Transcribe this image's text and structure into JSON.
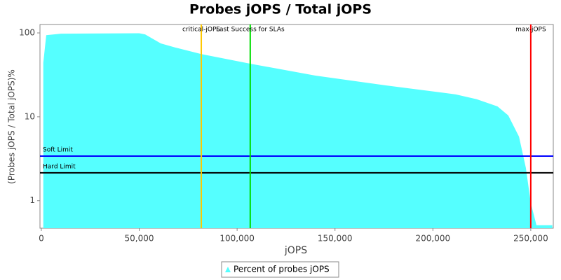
{
  "chart_data": {
    "type": "area",
    "title": "Probes jOPS / Total jOPS",
    "x_label": "jOPS",
    "y_label": "(Probes jOPS / Total jOPS)%",
    "log_y": true,
    "x": [
      1000,
      2500,
      10000,
      50000,
      53000,
      61000,
      68400,
      81700,
      106700,
      140000,
      176000,
      211700,
      222400,
      233000,
      238500,
      244000,
      247500,
      250000,
      252900,
      261000
    ],
    "series": [
      {
        "name": "Percent of probes jOPS",
        "color": "#55ffff",
        "values": [
          44,
          94,
          98,
          99,
          96,
          75,
          67,
          56,
          43,
          31,
          23.7,
          18.5,
          16.2,
          13.3,
          10.4,
          5.8,
          2.46,
          0.94,
          0.51,
          0.51
        ]
      }
    ],
    "xlim": [
      -700,
      261500
    ],
    "ylim": [
      0.47,
      126
    ],
    "xticks": [
      0,
      {
        "value": 50000,
        "label": "50,000"
      },
      {
        "value": 100000,
        "label": "100,000"
      },
      {
        "value": 150000,
        "label": "150,000"
      },
      {
        "value": 200000,
        "label": "200,000"
      },
      {
        "value": 250000,
        "label": "250,000"
      }
    ],
    "yticks": [
      1,
      10,
      100
    ],
    "vertical_lines": [
      {
        "label": "critical-jOPS",
        "value": 81700,
        "color": "#ffc800"
      },
      {
        "label": "Last Success for SLAs",
        "value": 106700,
        "color": "#00dd00"
      },
      {
        "label": "max-jOPS",
        "value": 250000,
        "color": "#ff0000"
      }
    ],
    "horizontal_lines": [
      {
        "label": "Soft Limit",
        "value": 3.4,
        "color": "#0000ff"
      },
      {
        "label": "Hard Limit",
        "value": 2.15,
        "color": "#000000"
      }
    ],
    "legend": "bottom"
  }
}
